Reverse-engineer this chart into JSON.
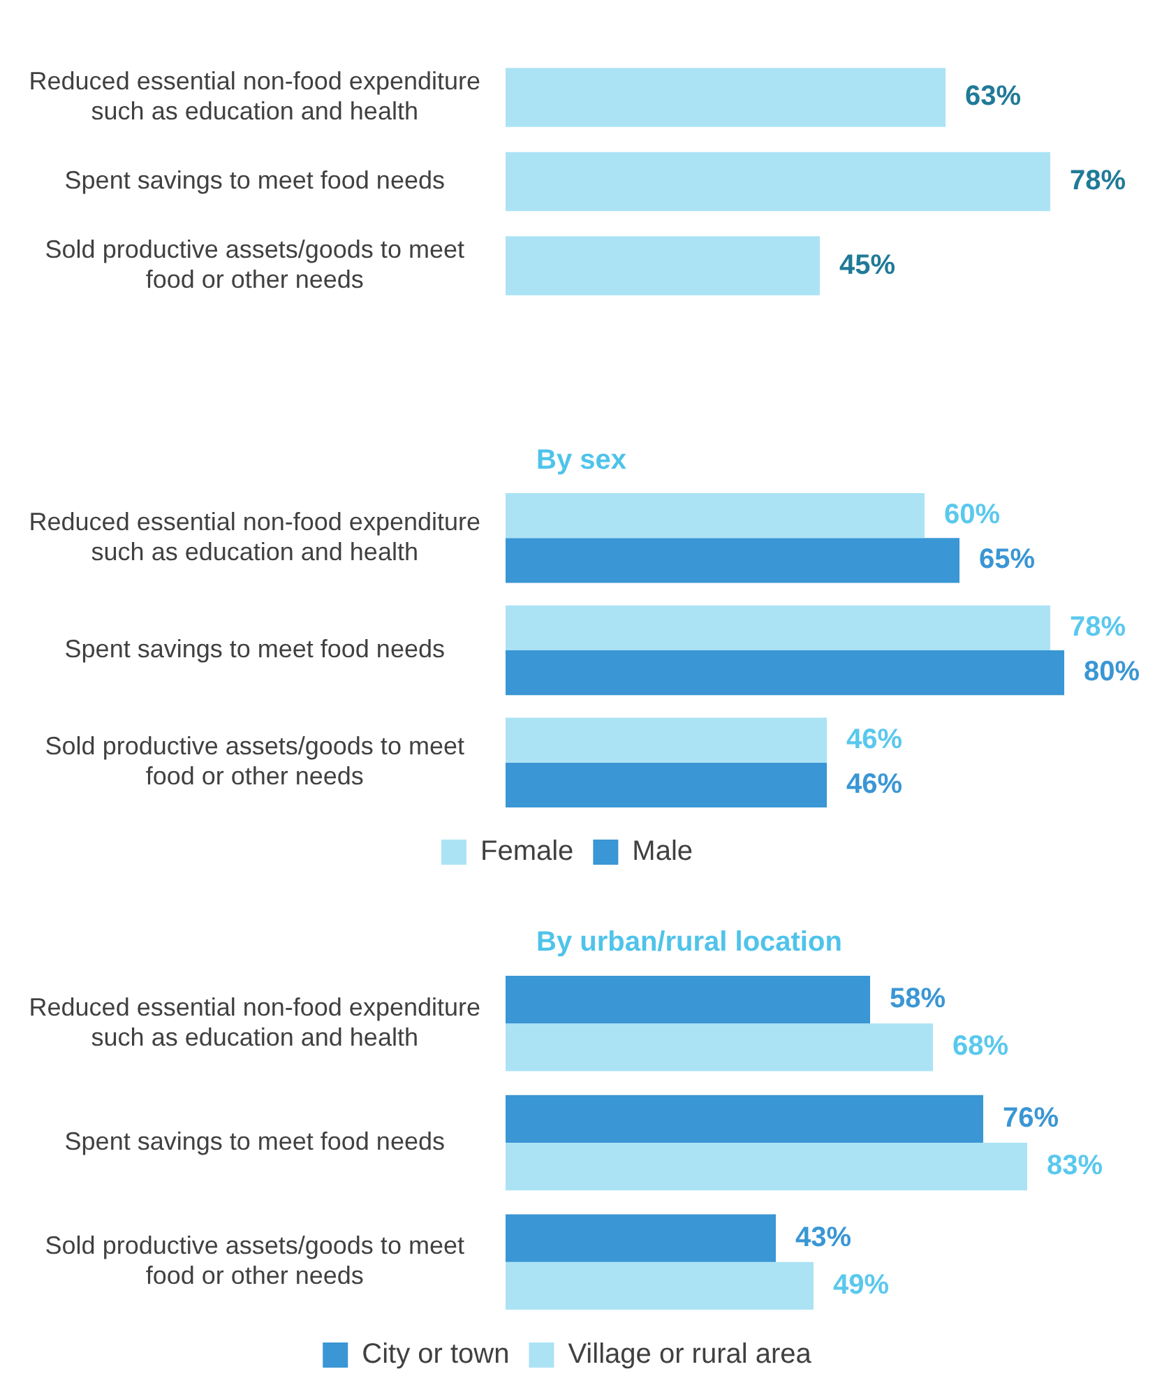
{
  "chart_data": [
    {
      "type": "bar",
      "orientation": "horizontal",
      "categories": [
        "Reduced essential non-food expenditure such as education and health",
        "Spent savings to meet food needs",
        "Sold productive assets/goods to meet food or other needs"
      ],
      "values": [
        63,
        78,
        45
      ],
      "value_labels": [
        "63%",
        "78%",
        "45%"
      ],
      "color": "#abe3f5",
      "tick_labels": "y"
    },
    {
      "type": "bar",
      "orientation": "horizontal",
      "title": "By sex",
      "categories": [
        "Reduced essential non-food expenditure such as education and health",
        "Spent savings to meet food needs",
        "Sold productive assets/goods to meet food or other needs"
      ],
      "series": [
        {
          "name": "Female",
          "color": "#abe3f5",
          "values": [
            60,
            78,
            46
          ],
          "value_labels": [
            "60%",
            "78%",
            "46%"
          ]
        },
        {
          "name": "Male",
          "color": "#3a96d4",
          "values": [
            65,
            80,
            46
          ],
          "value_labels": [
            "65%",
            "80%",
            "46%"
          ]
        }
      ],
      "tick_labels": "y",
      "legend": "bottom"
    },
    {
      "type": "bar",
      "orientation": "horizontal",
      "title": "By urban/rural location",
      "categories": [
        "Reduced essential non-food expenditure such as education and health",
        "Spent savings to meet food needs",
        "Sold productive assets/goods to meet food or other needs"
      ],
      "series": [
        {
          "name": "City or town",
          "color": "#3a96d4",
          "values": [
            58,
            76,
            43
          ],
          "value_labels": [
            "58%",
            "76%",
            "43%"
          ]
        },
        {
          "name": "Village or rural area",
          "color": "#abe3f5",
          "values": [
            68,
            83,
            49
          ],
          "value_labels": [
            "68%",
            "83%",
            "49%"
          ]
        }
      ],
      "tick_labels": "y",
      "legend": "bottom"
    }
  ]
}
